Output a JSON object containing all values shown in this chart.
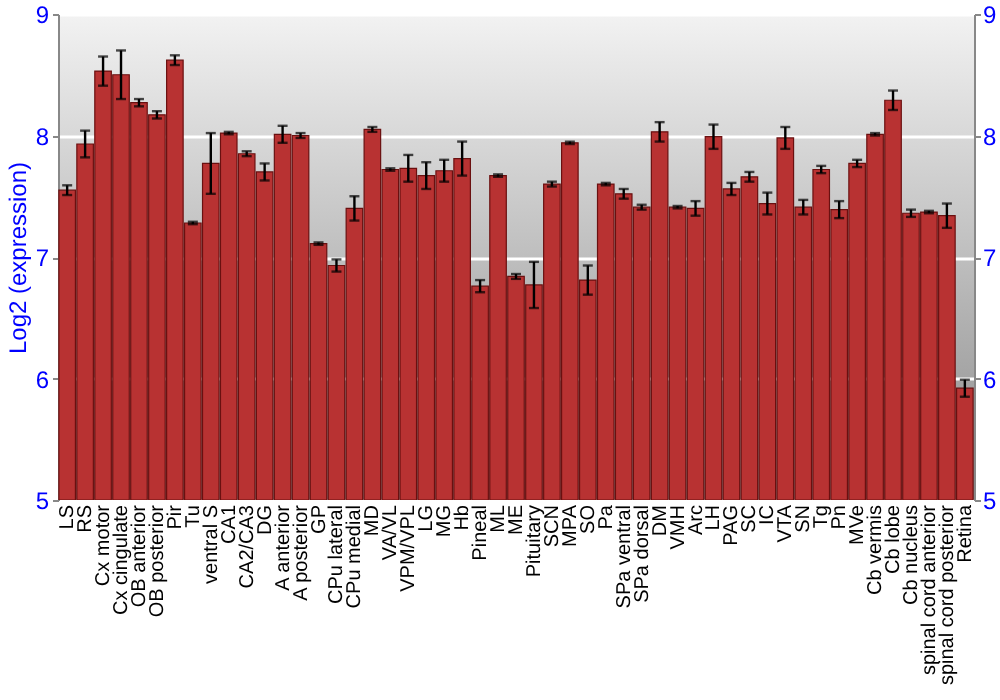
{
  "chart_data": {
    "type": "bar",
    "ylabel": "Log2 (expression)",
    "categories": [
      "LS",
      "RS",
      "Cx motor",
      "Cx cingulate",
      "OB anterior",
      "OB posterior",
      "Pir",
      "Tu",
      "ventral S",
      "CA1",
      "CA2/CA3",
      "DG",
      "A anterior",
      "A posterior",
      "GP",
      "CPu lateral",
      "CPu medial",
      "MD",
      "VA/VL",
      "VPM/VPL",
      "LG",
      "MG",
      "Hb",
      "Pineal",
      "ML",
      "ME",
      "Pituitary",
      "SCN",
      "MPA",
      "SO",
      "Pa",
      "SPa ventral",
      "SPa dorsal",
      "DM",
      "VMH",
      "Arc",
      "LH",
      "PAG",
      "SC",
      "IC",
      "VTA",
      "SN",
      "Tg",
      "Pn",
      "MVe",
      "Cb vermis",
      "Cb lobe",
      "Cb nucleus",
      "spinal cord anterior",
      "spinal cord posterior",
      "Retina"
    ],
    "series": [
      {
        "color": "#b83232",
        "values": [
          7.55,
          7.93,
          8.53,
          8.5,
          8.27,
          8.17,
          8.62,
          7.28,
          7.77,
          8.02,
          7.85,
          7.7,
          8.01,
          8.0,
          7.11,
          6.93,
          7.4,
          8.05,
          7.72,
          7.73,
          7.67,
          7.71,
          7.81,
          6.76,
          7.67,
          6.84,
          6.77,
          7.6,
          7.94,
          6.81,
          7.6,
          7.52,
          7.41,
          8.03,
          7.41,
          7.4,
          7.99,
          7.56,
          7.66,
          7.44,
          7.98,
          7.41,
          7.72,
          7.39,
          7.77,
          8.01,
          8.29,
          7.36,
          7.37,
          7.34,
          5.92
        ],
        "errors": [
          0.04,
          0.11,
          0.12,
          0.2,
          0.03,
          0.03,
          0.04,
          0.01,
          0.25,
          0.01,
          0.02,
          0.07,
          0.07,
          0.02,
          0.01,
          0.05,
          0.1,
          0.02,
          0.01,
          0.11,
          0.11,
          0.09,
          0.14,
          0.05,
          0.01,
          0.02,
          0.19,
          0.02,
          0.01,
          0.12,
          0.01,
          0.04,
          0.02,
          0.08,
          0.01,
          0.06,
          0.1,
          0.05,
          0.04,
          0.09,
          0.09,
          0.06,
          0.03,
          0.07,
          0.03,
          0.01,
          0.08,
          0.03,
          0.01,
          0.1,
          0.07
        ]
      }
    ],
    "ylim": [
      5,
      9
    ],
    "yticks": [
      5,
      6,
      7,
      8,
      9
    ],
    "y2lim": [
      5,
      9
    ],
    "y2ticks": [
      5,
      6,
      7,
      8,
      9
    ],
    "grid": "y"
  }
}
